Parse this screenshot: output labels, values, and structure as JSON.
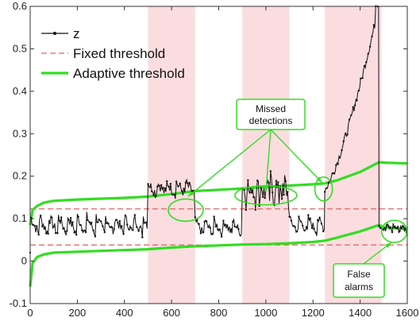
{
  "chart_data": {
    "type": "line",
    "title": "",
    "xlabel": "",
    "ylabel": "",
    "xlim": [
      0,
      1600
    ],
    "ylim": [
      -0.1,
      0.6
    ],
    "x_ticks": [
      "0",
      "200",
      "400",
      "600",
      "800",
      "1000",
      "1200",
      "1400",
      "1600"
    ],
    "y_ticks": [
      "-0.1",
      "0",
      "0.1",
      "0.2",
      "0.3",
      "0.4",
      "0.5",
      "0.6"
    ],
    "grid": false,
    "legend_position": "top-left",
    "shaded_regions": [
      [
        500,
        700
      ],
      [
        900,
        1100
      ],
      [
        1250,
        1490
      ]
    ],
    "colors": {
      "z": "#111111",
      "fixed": "#e06060",
      "adaptive": "#33dd22",
      "shade": "#fbdde0",
      "annotation": "#33dd22"
    },
    "legend": [
      {
        "key": "z",
        "label": "z"
      },
      {
        "key": "fixed",
        "label": "Fixed threshold"
      },
      {
        "key": "adaptive",
        "label": "Adaptive threshold"
      }
    ],
    "fixed_threshold": {
      "upper": 0.123,
      "lower": 0.038
    },
    "adaptive_threshold": {
      "upper": {
        "x": [
          0,
          10,
          30,
          60,
          100,
          200,
          300,
          400,
          500,
          600,
          700,
          800,
          900,
          1000,
          1100,
          1200,
          1250,
          1300,
          1400,
          1480,
          1500,
          1600
        ],
        "y": [
          0.085,
          0.12,
          0.13,
          0.138,
          0.142,
          0.145,
          0.147,
          0.149,
          0.152,
          0.158,
          0.165,
          0.168,
          0.171,
          0.175,
          0.178,
          0.181,
          0.183,
          0.19,
          0.21,
          0.233,
          0.232,
          0.23
        ]
      },
      "lower": {
        "x": [
          0,
          10,
          30,
          60,
          100,
          200,
          300,
          400,
          500,
          600,
          700,
          800,
          900,
          1000,
          1100,
          1200,
          1250,
          1300,
          1400,
          1480,
          1500,
          1600
        ],
        "y": [
          -0.06,
          -0.005,
          0.01,
          0.016,
          0.02,
          0.022,
          0.024,
          0.026,
          0.028,
          0.032,
          0.035,
          0.037,
          0.039,
          0.04,
          0.042,
          0.045,
          0.048,
          0.055,
          0.07,
          0.085,
          0.08,
          0.075
        ]
      }
    },
    "z_segments": [
      {
        "x_start": 0,
        "x_end": 500,
        "base": 0.06,
        "amp": 0.045,
        "period": 40,
        "noise": 0.012
      },
      {
        "x_start": 500,
        "x_end": 700,
        "base": 0.155,
        "amp": 0.03,
        "period": 40,
        "noise": 0.012
      },
      {
        "x_start": 700,
        "x_end": 900,
        "base": 0.06,
        "amp": 0.035,
        "period": 40,
        "noise": 0.01
      },
      {
        "x_start": 900,
        "x_end": 1100,
        "base": 0.14,
        "amp": 0.045,
        "period": 20,
        "noise": 0.03
      },
      {
        "x_start": 1100,
        "x_end": 1250,
        "base": 0.065,
        "amp": 0.035,
        "period": 40,
        "noise": 0.01
      },
      {
        "x_start": 1250,
        "x_end": 1480,
        "trend": "rising",
        "y_from": 0.17,
        "y_to": 0.6,
        "noise": 0.01
      },
      {
        "x_start": 1480,
        "x_end": 1600,
        "base": 0.07,
        "amp": 0.015,
        "period": 30,
        "noise": 0.008
      }
    ],
    "annotations": [
      {
        "id": "missed",
        "text_lines": [
          "Missed",
          "detections"
        ]
      },
      {
        "id": "false",
        "text_lines": [
          "False",
          "alarms"
        ]
      }
    ]
  }
}
